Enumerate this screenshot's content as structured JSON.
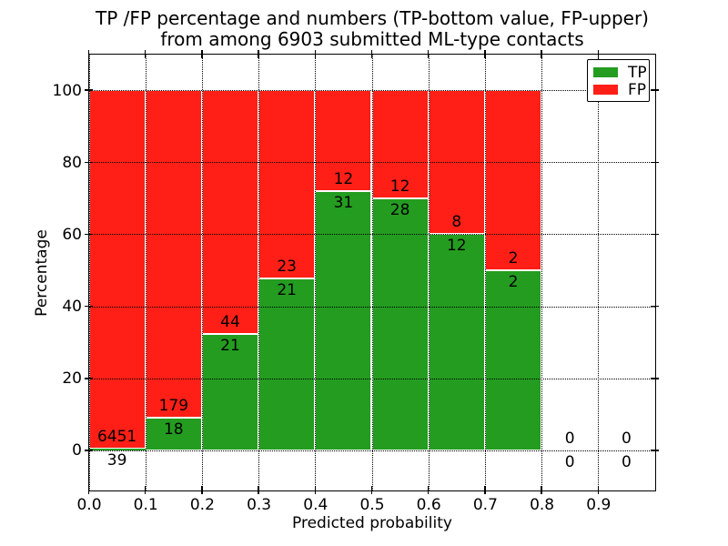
{
  "figure": {
    "title_line1": "TP /FP percentage and numbers (TP-bottom value, FP-upper)",
    "title_line2": "from among 6903 submitted ML-type contacts"
  },
  "axes": {
    "xlabel": "Predicted probability",
    "ylabel": "Percentage",
    "xticks": [
      {
        "v": 0.0,
        "label": "0.0"
      },
      {
        "v": 0.1,
        "label": "0.1"
      },
      {
        "v": 0.2,
        "label": "0.2"
      },
      {
        "v": 0.3,
        "label": "0.3"
      },
      {
        "v": 0.4,
        "label": "0.4"
      },
      {
        "v": 0.5,
        "label": "0.5"
      },
      {
        "v": 0.6,
        "label": "0.6"
      },
      {
        "v": 0.7,
        "label": "0.7"
      },
      {
        "v": 0.8,
        "label": "0.8"
      },
      {
        "v": 0.9,
        "label": "0.9"
      }
    ],
    "yticks": [
      {
        "v": 0,
        "label": "0"
      },
      {
        "v": 20,
        "label": "20"
      },
      {
        "v": 40,
        "label": "40"
      },
      {
        "v": 60,
        "label": "60"
      },
      {
        "v": 80,
        "label": "80"
      },
      {
        "v": 100,
        "label": "100"
      }
    ],
    "xlim": [
      0.0,
      1.0
    ],
    "ylim": [
      -11,
      110
    ],
    "grid": {
      "on": true,
      "style": "dotted",
      "color": "#000000"
    }
  },
  "legend": {
    "position": "upper right",
    "items": [
      {
        "label": "TP",
        "color": "#249c20"
      },
      {
        "label": "FP",
        "color": "#ff1f16"
      }
    ]
  },
  "chart_data": {
    "type": "bar",
    "stacked": true,
    "unit": "percent of contacts in each bin",
    "title": "TP /FP percentage and numbers (TP-bottom value, FP-upper) from among 6903 submitted ML-type contacts",
    "xlabel": "Predicted probability",
    "ylabel": "Percentage",
    "total_contacts": 6903,
    "bin_width": 0.1,
    "bin_start": [
      0.0,
      0.1,
      0.2,
      0.3,
      0.4,
      0.5,
      0.6,
      0.7,
      0.8,
      0.9
    ],
    "series": [
      {
        "name": "TP",
        "color": "#249c20",
        "counts": [
          39,
          18,
          21,
          21,
          31,
          28,
          12,
          2,
          0,
          0
        ]
      },
      {
        "name": "FP",
        "color": "#ff1f16",
        "counts": [
          6451,
          179,
          44,
          23,
          12,
          12,
          8,
          2,
          0,
          0
        ]
      }
    ],
    "tp_percent": [
      0.6,
      9.1,
      32.3,
      47.7,
      72.1,
      70.0,
      60.0,
      50.0,
      0.0,
      0.0
    ],
    "annotation_rule": "FP count printed above green/red boundary, TP count printed below it"
  }
}
